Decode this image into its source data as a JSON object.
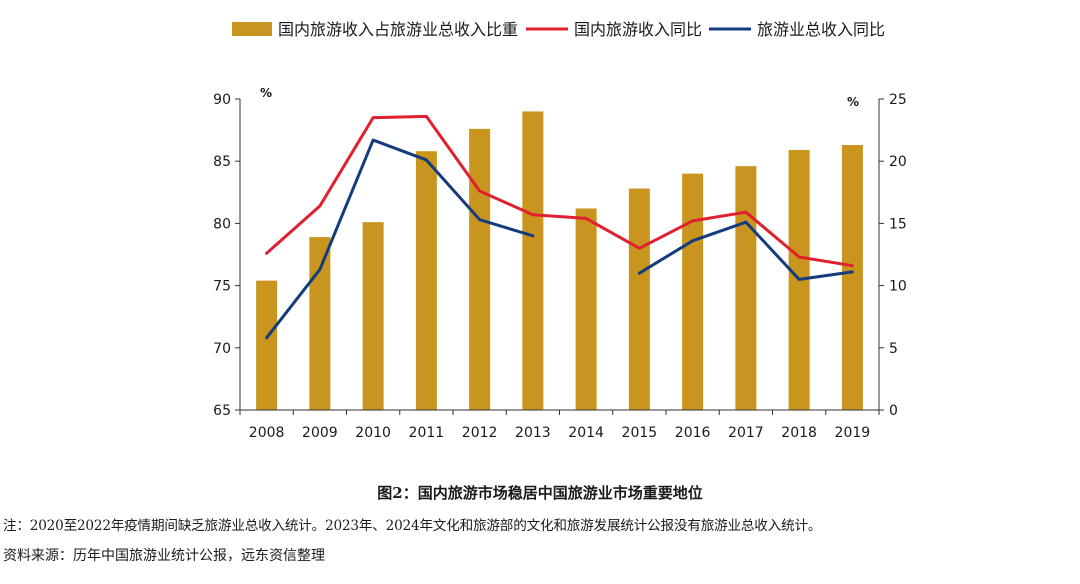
{
  "chart_data": {
    "type": "bar",
    "title": "",
    "categories": [
      "2008",
      "2009",
      "2010",
      "2011",
      "2012",
      "2013",
      "2014",
      "2015",
      "2016",
      "2017",
      "2018",
      "2019"
    ],
    "series": [
      {
        "name": "国内旅游收入占旅游业总收入比重",
        "type": "bar",
        "axis": "left",
        "color": "#C9951F",
        "values": [
          75.4,
          78.9,
          80.1,
          85.8,
          87.6,
          89.0,
          81.2,
          82.8,
          84.0,
          84.6,
          85.9,
          86.3
        ]
      },
      {
        "name": "国内旅游收入同比",
        "type": "line",
        "axis": "right",
        "color": "#E0202E",
        "values": [
          12.6,
          16.4,
          23.5,
          23.6,
          17.6,
          15.7,
          15.4,
          13.0,
          15.2,
          15.9,
          12.3,
          11.6
        ]
      },
      {
        "name": "旅游业总收入同比",
        "type": "line",
        "axis": "right",
        "color": "#143C7C",
        "values": [
          5.8,
          11.3,
          21.7,
          20.1,
          15.3,
          14.0,
          null,
          11.0,
          13.6,
          15.1,
          10.5,
          11.1
        ]
      }
    ],
    "y_left": {
      "min": 65,
      "max": 90,
      "ticks": [
        65,
        70,
        75,
        80,
        85,
        90
      ],
      "unit": "%"
    },
    "y_right": {
      "min": 0,
      "max": 25,
      "ticks": [
        0,
        5,
        10,
        15,
        20,
        25
      ],
      "unit": "%"
    },
    "legend_position": "top",
    "grid": false
  },
  "caption": "图2：国内旅游市场稳居中国旅游业市场重要地位",
  "note": "注：2020至2022年疫情期间缺乏旅游业总收入统计。2023年、2024年文化和旅游部的文化和旅游发展统计公报没有旅游业总收入统计。",
  "source": "资料来源：历年中国旅游业统计公报，远东资信整理"
}
